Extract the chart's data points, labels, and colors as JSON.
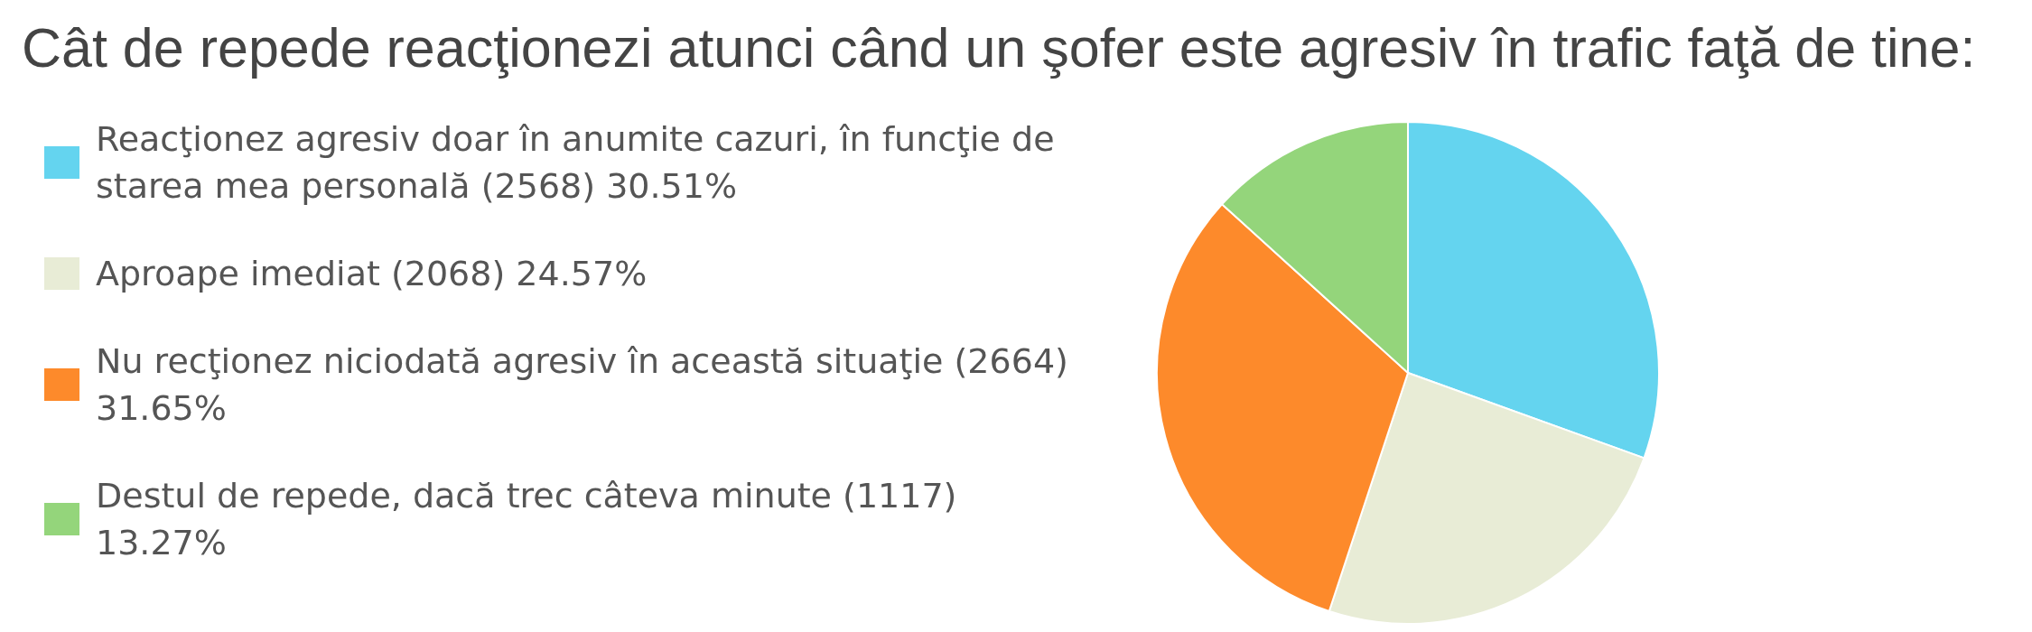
{
  "chart_data": {
    "type": "pie",
    "title": "Cât de repede reacţionezi atunci când un şofer este agresiv în trafic faţă de tine:",
    "categories": [
      "Reacţionez agresiv doar în anumite cazuri, în funcţie de starea mea personală (2568) 30.51%",
      "Aproape imediat (2068) 24.57%",
      "Nu recţionez niciodată agresiv în această situaţie (2664) 31.65%",
      "Destul de repede, dacă trec câteva minute (1117) 13.27%"
    ],
    "values": [
      2568,
      2068,
      2664,
      1117
    ],
    "colors": [
      "#64d4ef",
      "#e8ecd6",
      "#fd8a2b",
      "#94d57b"
    ],
    "legend": "left"
  }
}
